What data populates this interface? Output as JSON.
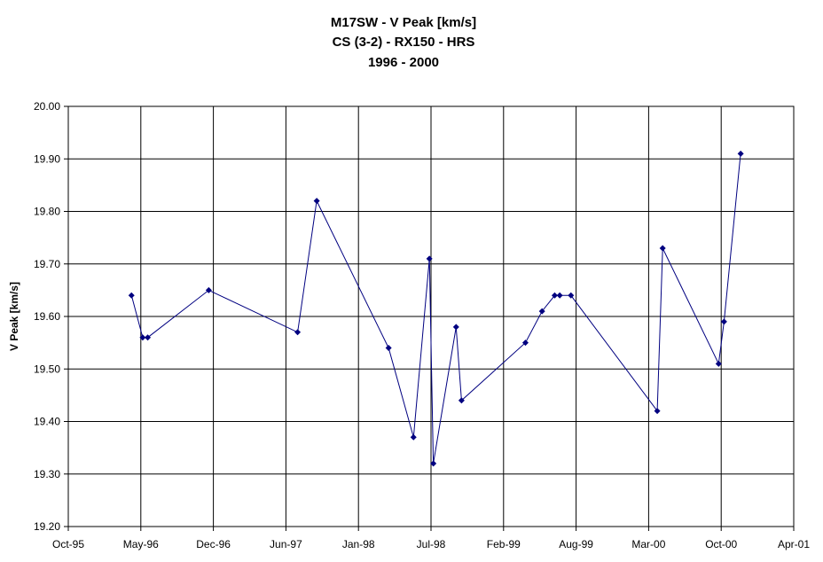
{
  "chart_data": {
    "type": "line",
    "title_lines": [
      "M17SW - V Peak [km/s]",
      "CS (3-2) - RX150 - HRS",
      "1996 - 2000"
    ],
    "xlabel": "",
    "ylabel": "V Peak [km/s]",
    "x_ticks": [
      "Oct-95",
      "May-96",
      "Dec-96",
      "Jun-97",
      "Jan-98",
      "Jul-98",
      "Feb-99",
      "Aug-99",
      "Mar-00",
      "Oct-00",
      "Apr-01"
    ],
    "xlim": [
      "1995-10-01",
      "2001-04-01"
    ],
    "y_ticks": [
      "19.20",
      "19.30",
      "19.40",
      "19.50",
      "19.60",
      "19.70",
      "19.80",
      "19.90",
      "20.00"
    ],
    "ylim": [
      19.2,
      20.0
    ],
    "grid": true,
    "legend": "none",
    "line_color": "#000080",
    "series": [
      {
        "x": [
          "1996-03-24",
          "1996-04-24",
          "1996-05-08",
          "1996-10-24",
          "1997-06-27",
          "1997-08-19",
          "1998-03-06",
          "1998-05-14",
          "1998-06-27",
          "1998-07-08",
          "1998-09-09",
          "1998-09-24",
          "1999-03-20",
          "1999-05-05",
          "1999-06-09",
          "1999-06-23",
          "1999-07-24",
          "2000-03-19",
          "2000-04-03",
          "2000-09-05",
          "2000-09-20",
          "2000-11-05"
        ],
        "values": [
          19.64,
          19.56,
          19.56,
          19.65,
          19.57,
          19.82,
          19.54,
          19.37,
          19.71,
          19.32,
          19.58,
          19.44,
          19.55,
          19.61,
          19.64,
          19.64,
          19.64,
          19.42,
          19.73,
          19.51,
          19.59,
          19.91
        ]
      }
    ]
  }
}
